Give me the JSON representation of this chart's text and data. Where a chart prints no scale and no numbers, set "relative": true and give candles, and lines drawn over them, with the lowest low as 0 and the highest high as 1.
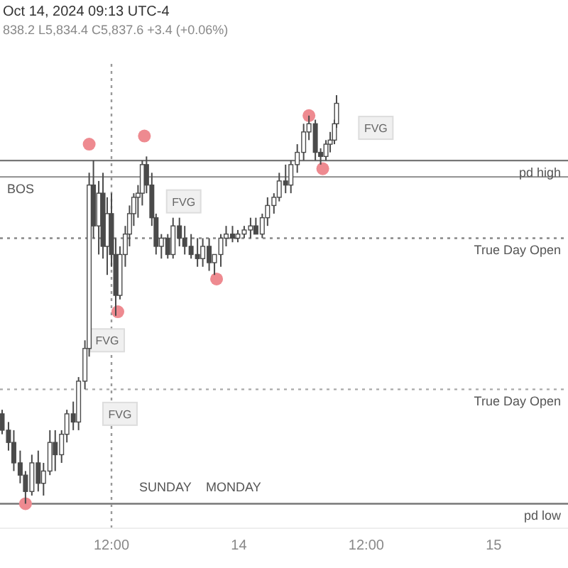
{
  "chart_data": {
    "type": "candlestick",
    "relative": true,
    "annotations": [
      "Oct 14, 2024 09:13 UTC-4",
      "838.2 L5,834.4 C5,837.6 +3.4 (+0.06%)",
      "SUNDAY",
      "MONDAY",
      {
        "text": "FVG",
        "x": "2024-10-13T11:36",
        "y": 0.4
      },
      {
        "text": "FVG",
        "x": "2024-10-13T12:48",
        "y": 0.22
      },
      {
        "text": "FVG",
        "x": "2024-10-13T18:48",
        "y": 0.74
      },
      {
        "text": "FVG",
        "x": "2024-10-14T12:54",
        "y": 0.92
      }
    ],
    "xlim": [
      "2024-10-13T01:30",
      "2024-10-15T07:00"
    ],
    "xticks": [
      {
        "value": "2024-10-13T12:00",
        "label": "12:00"
      },
      {
        "value": "2024-10-14T00:00",
        "label": "14"
      },
      {
        "value": "2024-10-14T12:00",
        "label": "12:00"
      },
      {
        "value": "2024-10-15T00:00",
        "label": "15"
      }
    ],
    "color": "#4a4a4a",
    "x": [
      "2024-10-13T01:42",
      "2024-10-13T02:18",
      "2024-10-13T02:48",
      "2024-10-13T03:24",
      "2024-10-13T03:54",
      "2024-10-13T04:30",
      "2024-10-13T05:06",
      "2024-10-13T05:36",
      "2024-10-13T06:12",
      "2024-10-13T06:42",
      "2024-10-13T07:18",
      "2024-10-13T07:48",
      "2024-10-13T08:24",
      "2024-10-13T08:54",
      "2024-10-13T09:30",
      "2024-10-13T09:54",
      "2024-10-13T10:18",
      "2024-10-13T10:48",
      "2024-10-13T11:12",
      "2024-10-13T11:36",
      "2024-10-13T12:00",
      "2024-10-13T12:24",
      "2024-10-13T12:48",
      "2024-10-13T13:18",
      "2024-10-13T13:42",
      "2024-10-13T14:06",
      "2024-10-13T14:30",
      "2024-10-13T14:54",
      "2024-10-13T15:18",
      "2024-10-13T15:48",
      "2024-10-13T16:12",
      "2024-10-13T16:42",
      "2024-10-13T17:18",
      "2024-10-13T17:48",
      "2024-10-13T18:24",
      "2024-10-13T18:54",
      "2024-10-13T19:30",
      "2024-10-13T20:06",
      "2024-10-13T20:36",
      "2024-10-13T21:12",
      "2024-10-13T21:42",
      "2024-10-13T22:18",
      "2024-10-13T22:48",
      "2024-10-13T23:24",
      "2024-10-13T23:54",
      "2024-10-14T00:30",
      "2024-10-14T01:06",
      "2024-10-14T01:36",
      "2024-10-14T02:12",
      "2024-10-14T02:42",
      "2024-10-14T03:18",
      "2024-10-14T03:48",
      "2024-10-14T04:24",
      "2024-10-14T04:54",
      "2024-10-14T05:30",
      "2024-10-14T06:06",
      "2024-10-14T06:36",
      "2024-10-14T07:12",
      "2024-10-14T07:42",
      "2024-10-14T08:12",
      "2024-10-14T08:36",
      "2024-10-14T09:00",
      "2024-10-14T09:12"
    ],
    "ohlc": [
      [
        0.22,
        0.23,
        0.17,
        0.18
      ],
      [
        0.18,
        0.2,
        0.13,
        0.15
      ],
      [
        0.15,
        0.18,
        0.08,
        0.1
      ],
      [
        0.1,
        0.13,
        0.05,
        0.07
      ],
      [
        0.07,
        0.08,
        0,
        0.03
      ],
      [
        0.03,
        0.12,
        0.02,
        0.1
      ],
      [
        0.1,
        0.13,
        0.03,
        0.05
      ],
      [
        0.05,
        0.1,
        0.02,
        0.08
      ],
      [
        0.08,
        0.18,
        0.07,
        0.15
      ],
      [
        0.15,
        0.18,
        0.08,
        0.12
      ],
      [
        0.12,
        0.18,
        0.1,
        0.17
      ],
      [
        0.17,
        0.23,
        0.15,
        0.22
      ],
      [
        0.22,
        0.25,
        0.18,
        0.2
      ],
      [
        0.2,
        0.31,
        0.18,
        0.3
      ],
      [
        0.3,
        0.4,
        0.28,
        0.38
      ],
      [
        0.38,
        0.81,
        0.36,
        0.78
      ],
      [
        0.78,
        0.84,
        0.65,
        0.68
      ],
      [
        0.68,
        0.79,
        0.61,
        0.76
      ],
      [
        0.76,
        0.81,
        0.6,
        0.63
      ],
      [
        0.63,
        0.75,
        0.56,
        0.71
      ],
      [
        0.71,
        0.76,
        0.58,
        0.61
      ],
      [
        0.61,
        0.65,
        0.46,
        0.51
      ],
      [
        0.51,
        0.63,
        0.5,
        0.61
      ],
      [
        0.61,
        0.68,
        0.58,
        0.66
      ],
      [
        0.66,
        0.73,
        0.63,
        0.71
      ],
      [
        0.71,
        0.76,
        0.68,
        0.75
      ],
      [
        0.75,
        0.78,
        0.7,
        0.76
      ],
      [
        0.76,
        0.84,
        0.73,
        0.83
      ],
      [
        0.83,
        0.85,
        0.76,
        0.78
      ],
      [
        0.78,
        0.81,
        0.68,
        0.7
      ],
      [
        0.7,
        0.71,
        0.61,
        0.63
      ],
      [
        0.63,
        0.66,
        0.6,
        0.65
      ],
      [
        0.65,
        0.66,
        0.6,
        0.61
      ],
      [
        0.61,
        0.7,
        0.6,
        0.68
      ],
      [
        0.68,
        0.7,
        0.63,
        0.65
      ],
      [
        0.65,
        0.68,
        0.61,
        0.63
      ],
      [
        0.63,
        0.66,
        0.6,
        0.61
      ],
      [
        0.61,
        0.65,
        0.58,
        0.6
      ],
      [
        0.6,
        0.65,
        0.58,
        0.63
      ],
      [
        0.63,
        0.65,
        0.57,
        0.59
      ],
      [
        0.59,
        0.61,
        0.56,
        0.61
      ],
      [
        0.61,
        0.66,
        0.58,
        0.65
      ],
      [
        0.65,
        0.68,
        0.63,
        0.66
      ],
      [
        0.66,
        0.68,
        0.64,
        0.65
      ],
      [
        0.65,
        0.67,
        0.64,
        0.66
      ],
      [
        0.66,
        0.68,
        0.65,
        0.67
      ],
      [
        0.67,
        0.7,
        0.65,
        0.68
      ],
      [
        0.68,
        0.7,
        0.66,
        0.66
      ],
      [
        0.66,
        0.71,
        0.65,
        0.7
      ],
      [
        0.7,
        0.75,
        0.68,
        0.73
      ],
      [
        0.73,
        0.76,
        0.71,
        0.75
      ],
      [
        0.75,
        0.81,
        0.74,
        0.79
      ],
      [
        0.79,
        0.83,
        0.76,
        0.78
      ],
      [
        0.78,
        0.84,
        0.76,
        0.83
      ],
      [
        0.83,
        0.88,
        0.81,
        0.86
      ],
      [
        0.86,
        0.93,
        0.84,
        0.91
      ],
      [
        0.91,
        0.95,
        0.89,
        0.93
      ],
      [
        0.93,
        0.94,
        0.84,
        0.86
      ],
      [
        0.86,
        0.87,
        0.83,
        0.85
      ],
      [
        0.85,
        0.89,
        0.84,
        0.88
      ],
      [
        0.88,
        0.91,
        0.86,
        0.89
      ],
      [
        0.89,
        0.94,
        0.88,
        0.93
      ],
      [
        0.93,
        1,
        0.92,
        0.98
      ]
    ],
    "series": [
      {
        "type": "scatter",
        "color": "#ee8a90",
        "x": [
          "2024-10-13T03:54",
          "2024-10-13T09:54",
          "2024-10-13T12:36",
          "2024-10-13T15:06",
          "2024-10-13T21:54",
          "2024-10-14T06:36",
          "2024-10-14T07:54"
        ],
        "values": [
          0,
          0.88,
          0.47,
          0.9,
          0.55,
          0.95,
          0.82
        ]
      }
    ],
    "marker": "circle",
    "ref_lines": [
      {
        "axis": "y",
        "value": 0.65,
        "label": "True Day Open",
        "line_style": "dotted",
        "color": "#888888"
      },
      {
        "axis": "y",
        "value": 0.28,
        "label": "True Day Open",
        "line_style": "dotted",
        "color": "#aaaaaa"
      },
      {
        "axis": "y",
        "value": 0.84,
        "label": "pd high",
        "color": "#777777"
      },
      {
        "axis": "y",
        "value": 0,
        "label": "pd low",
        "color": "#777777"
      },
      {
        "axis": "y",
        "value": 0.8,
        "label": "BOS",
        "color": "#999999"
      },
      {
        "axis": "x",
        "value": "2024-10-13T12:00",
        "line_style": "dotted",
        "color": "#999999"
      }
    ]
  }
}
